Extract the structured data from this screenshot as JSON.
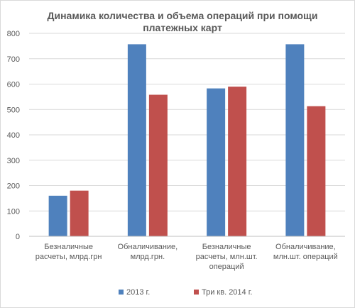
{
  "chart_data": {
    "type": "bar",
    "title": [
      "Динамика количества и объема операций при помощи",
      "платежных карт"
    ],
    "categories": [
      [
        "Безналичные",
        "расчеты, млрд.грн"
      ],
      [
        "Обналичивание,",
        "млрд.грн."
      ],
      [
        "Безналичные",
        "расчеты, млн.шт.",
        "операций"
      ],
      [
        "Обналичивание,",
        "млн.шт. операций"
      ]
    ],
    "series": [
      {
        "name": "2013 г.",
        "color": "#4f81bd",
        "values": [
          160,
          757,
          583,
          757
        ]
      },
      {
        "name": "Три кв. 2014 г.",
        "color": "#c0504d",
        "values": [
          180,
          558,
          590,
          513
        ]
      }
    ],
    "ylim": [
      0,
      800
    ],
    "yticks": [
      0,
      100,
      200,
      300,
      400,
      500,
      600,
      700,
      800
    ],
    "xlabel": "",
    "ylabel": "",
    "grid": true,
    "legend": "bottom"
  }
}
